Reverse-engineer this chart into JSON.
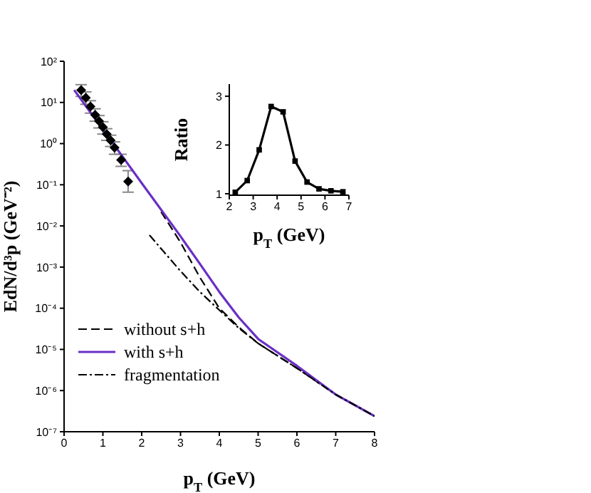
{
  "chart_data": [
    {
      "type": "line",
      "xlabel": "p$_{T}$ (GeV)",
      "ylabel": "EdN/d³p  (GeV⁻²)",
      "log": "y",
      "grid": false,
      "legend": "bottom left",
      "xlim": [
        0,
        8
      ],
      "xticks": [
        0,
        1,
        2,
        3,
        4,
        5,
        6,
        7,
        8
      ],
      "ylim": [
        1e-07,
        100
      ],
      "yticks": [
        {
          "value": 100,
          "label": "10²"
        },
        {
          "value": 10,
          "label": "10¹"
        },
        {
          "value": 1,
          "label": "10⁰"
        },
        {
          "value": 0.1,
          "label": "10⁻¹"
        },
        {
          "value": 0.01,
          "label": "10⁻²"
        },
        {
          "value": 0.001,
          "label": "10⁻³"
        },
        {
          "value": 0.0001,
          "label": "10⁻⁴"
        },
        {
          "value": 1e-05,
          "label": "10⁻⁵"
        },
        {
          "value": 1e-06,
          "label": "10⁻⁶"
        },
        {
          "value": 1e-07,
          "label": "10⁻⁷"
        }
      ],
      "series": [
        {
          "type": "scatter",
          "color": "#000000",
          "marker": "diamond",
          "x": [
            0.44,
            0.56,
            0.68,
            0.8,
            0.9,
            1.0,
            1.1,
            1.2,
            1.3,
            1.47,
            1.65
          ],
          "values": [
            20,
            13,
            8,
            5,
            3.5,
            2.5,
            1.7,
            1.2,
            0.8,
            0.4,
            0.12
          ],
          "errors": [
            [
              14,
              27
            ],
            [
              9,
              18
            ],
            [
              5.5,
              11
            ],
            [
              3.5,
              7
            ],
            [
              2.4,
              4.8
            ],
            [
              1.7,
              3.4
            ],
            [
              1.2,
              2.3
            ],
            [
              0.85,
              1.6
            ],
            [
              0.55,
              1.1
            ],
            [
              0.28,
              0.55
            ],
            [
              0.066,
              0.22
            ]
          ]
        },
        {
          "name": "without s+h",
          "type": "line",
          "color": "#000000",
          "line_style": "dashed",
          "x": [
            2.5,
            3,
            3.5,
            4,
            4.5,
            5,
            6,
            7,
            8
          ],
          "values": [
            0.022,
            0.004,
            0.00056,
            0.0001,
            3.5e-05,
            1.4e-05,
            3.5e-06,
            8e-07,
            2.4e-07
          ]
        },
        {
          "name": "with s+h",
          "type": "line",
          "color": "#6a2fc4",
          "line_style": "solid",
          "x": [
            0.26,
            1,
            2,
            3,
            3.5,
            4,
            4.5,
            5,
            6,
            7,
            8
          ],
          "values": [
            20,
            2.2,
            0.11,
            0.0056,
            0.0012,
            0.00025,
            6e-05,
            1.8e-05,
            4e-06,
            8e-07,
            2.4e-07
          ]
        },
        {
          "name": "fragmentation",
          "type": "line",
          "color": "#000000",
          "line_style": "dashdot",
          "x": [
            2.2,
            2.5,
            3,
            3.5,
            4,
            4.5,
            5,
            6,
            7,
            8
          ],
          "values": [
            0.006,
            0.0028,
            0.0008,
            0.00025,
            9e-05,
            3.3e-05,
            1.4e-05,
            3.5e-06,
            8e-07,
            2.4e-07
          ]
        }
      ]
    },
    {
      "type": "line",
      "xlabel": "p$_{T}$ (GeV)",
      "ylabel": "Ratio",
      "grid": false,
      "marker": "square",
      "legend": false,
      "xlim": [
        2,
        7
      ],
      "xticks": [
        2,
        3,
        4,
        5,
        6,
        7
      ],
      "ylim": [
        0.97,
        3.25
      ],
      "yticks": [
        1,
        2,
        3
      ],
      "series": [
        {
          "color": "#000000",
          "x": [
            2.25,
            2.75,
            3.25,
            3.75,
            4.25,
            4.75,
            5.25,
            5.75,
            6.25,
            6.75
          ],
          "values": [
            1.03,
            1.27,
            1.9,
            2.79,
            2.68,
            1.67,
            1.24,
            1.1,
            1.06,
            1.04
          ]
        }
      ]
    }
  ]
}
